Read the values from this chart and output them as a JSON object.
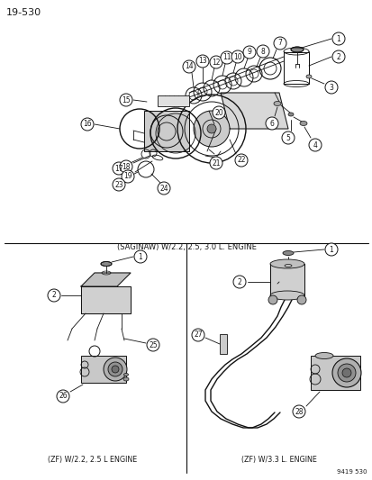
{
  "page_number": "19-530",
  "background_color": "#ffffff",
  "part_number": "9419 530",
  "top_section_label": "(SAGINAW) W/2.2, 2.5, 3.0 L. ENGINE",
  "bottom_left_label": "(ZF) W/2.2, 2.5 L ENGINE",
  "bottom_right_label": "(ZF) W/3.3 L. ENGINE",
  "text_color": "#1a1a1a",
  "line_color": "#111111"
}
